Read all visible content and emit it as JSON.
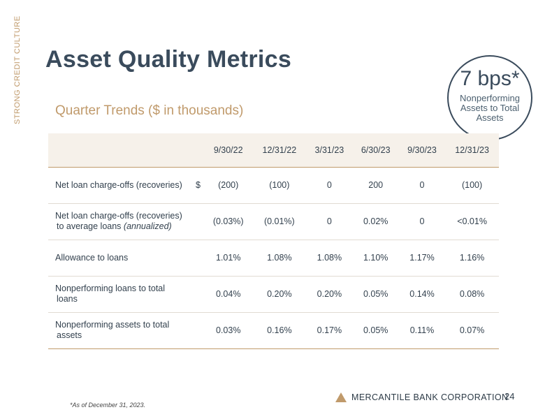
{
  "side_label": "STRONG CREDIT CULTURE",
  "title": "Asset Quality Metrics",
  "subtitle": "Quarter Trends ($ in thousands)",
  "callout": {
    "value": "7 bps*",
    "caption": "Nonperforming Assets to Total Assets"
  },
  "table": {
    "headers": [
      "",
      "9/30/22",
      "12/31/22",
      "3/31/23",
      "6/30/23",
      "9/30/23",
      "12/31/23"
    ],
    "rows": [
      {
        "label": "Net loan charge-offs (recoveries)",
        "label_line2": "",
        "unit": "$",
        "values": [
          "(200)",
          "(100)",
          "0",
          "200",
          "0",
          "(100)"
        ]
      },
      {
        "label": "Net loan charge-offs (recoveries)",
        "label_line2": "to average loans (annualized)",
        "unit": "",
        "values": [
          "(0.03%)",
          "(0.01%)",
          "0",
          "0.02%",
          "0",
          "<0.01%"
        ]
      },
      {
        "label": "Allowance to loans",
        "label_line2": "",
        "unit": "",
        "values": [
          "1.01%",
          "1.08%",
          "1.08%",
          "1.10%",
          "1.17%",
          "1.16%"
        ]
      },
      {
        "label": "Nonperforming loans to total",
        "label_line2": "loans",
        "unit": "",
        "values": [
          "0.04%",
          "0.20%",
          "0.20%",
          "0.05%",
          "0.14%",
          "0.08%"
        ]
      },
      {
        "label": "Nonperforming assets to total",
        "label_line2": "assets",
        "unit": "",
        "values": [
          "0.03%",
          "0.16%",
          "0.17%",
          "0.05%",
          "0.11%",
          "0.07%"
        ]
      }
    ]
  },
  "footnote": "*As of December 31, 2023.",
  "logo_text": "MERCANTILE BANK CORPORATION",
  "page_number": "24",
  "colors": {
    "navy": "#3a4b5c",
    "gold": "#c09a6b",
    "header_bg": "#f6f1ea"
  }
}
